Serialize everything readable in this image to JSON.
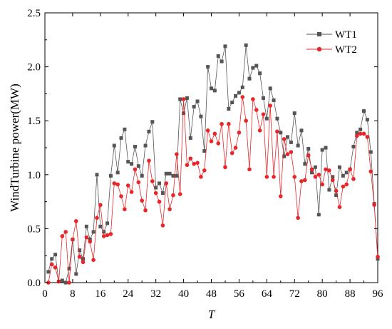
{
  "chart_data": {
    "type": "line",
    "xlabel": "T",
    "ylabel": "WindTurbine power(MW)",
    "xlim": [
      0,
      96
    ],
    "ylim": [
      0.0,
      2.5
    ],
    "x_ticks": [
      0,
      8,
      16,
      24,
      32,
      40,
      48,
      56,
      64,
      72,
      80,
      88,
      96
    ],
    "y_ticks": [
      0.0,
      0.5,
      1.0,
      1.5,
      2.0,
      2.5
    ],
    "y_tick_labels": [
      "0.0",
      "0.5",
      "1.0",
      "1.5",
      "2.0",
      "2.5"
    ],
    "grid": false,
    "legend_position": "top-right",
    "x": [
      1,
      2,
      3,
      4,
      5,
      6,
      7,
      8,
      9,
      10,
      11,
      12,
      13,
      14,
      15,
      16,
      17,
      18,
      19,
      20,
      21,
      22,
      23,
      24,
      25,
      26,
      27,
      28,
      29,
      30,
      31,
      32,
      33,
      34,
      35,
      36,
      37,
      38,
      39,
      40,
      41,
      42,
      43,
      44,
      45,
      46,
      47,
      48,
      49,
      50,
      51,
      52,
      53,
      54,
      55,
      56,
      57,
      58,
      59,
      60,
      61,
      62,
      63,
      64,
      65,
      66,
      67,
      68,
      69,
      70,
      71,
      72,
      73,
      74,
      75,
      76,
      77,
      78,
      79,
      80,
      81,
      82,
      83,
      84,
      85,
      86,
      87,
      88,
      89,
      90,
      91,
      92,
      93,
      94,
      95,
      96
    ],
    "series": [
      {
        "name": "WT1",
        "color": "#555555",
        "marker": "square",
        "values": [
          0.1,
          0.22,
          0.26,
          0.01,
          0.02,
          0.0,
          0.13,
          0.4,
          0.08,
          0.3,
          0.22,
          0.52,
          0.4,
          0.47,
          1.0,
          0.52,
          0.47,
          0.55,
          0.99,
          1.27,
          1.02,
          1.34,
          1.42,
          1.12,
          1.1,
          1.26,
          1.08,
          0.99,
          1.27,
          1.4,
          1.49,
          0.88,
          0.92,
          0.83,
          1.01,
          1.01,
          0.99,
          0.99,
          1.7,
          1.57,
          1.71,
          1.34,
          1.63,
          1.68,
          1.54,
          1.22,
          2.0,
          1.8,
          1.78,
          2.1,
          2.05,
          2.19,
          1.61,
          1.67,
          1.73,
          1.76,
          1.81,
          2.2,
          1.89,
          1.99,
          2.01,
          1.94,
          1.71,
          1.52,
          1.8,
          1.69,
          1.52,
          1.39,
          1.17,
          1.35,
          1.3,
          1.57,
          1.27,
          1.41,
          1.1,
          1.24,
          1.02,
          1.07,
          0.63,
          1.23,
          1.25,
          0.86,
          0.98,
          0.81,
          1.07,
          0.99,
          1.02,
          1.05,
          1.26,
          1.39,
          1.42,
          1.59,
          1.51,
          1.21,
          0.73,
          0.22
        ]
      },
      {
        "name": "WT2",
        "color": "#e8262a",
        "marker": "circle",
        "values": [
          0.0,
          0.17,
          0.14,
          0.01,
          0.43,
          0.47,
          0.0,
          0.4,
          0.57,
          0.24,
          0.19,
          0.42,
          0.38,
          0.21,
          0.6,
          0.72,
          0.43,
          0.44,
          0.45,
          0.92,
          0.91,
          0.8,
          0.68,
          0.9,
          0.84,
          1.05,
          0.93,
          0.76,
          0.67,
          1.13,
          0.94,
          0.83,
          0.75,
          0.53,
          0.92,
          0.68,
          0.81,
          1.19,
          0.82,
          1.7,
          1.09,
          1.15,
          1.1,
          1.11,
          0.98,
          1.04,
          1.41,
          1.31,
          1.38,
          1.29,
          1.47,
          1.07,
          1.47,
          1.2,
          1.25,
          1.39,
          1.72,
          1.5,
          1.05,
          1.7,
          1.6,
          1.41,
          1.56,
          0.98,
          1.64,
          0.98,
          1.4,
          0.8,
          1.33,
          1.19,
          1.21,
          0.98,
          0.6,
          0.94,
          0.95,
          1.18,
          1.05,
          0.98,
          1.0,
          0.91,
          1.05,
          1.04,
          0.95,
          0.85,
          0.7,
          0.89,
          0.91,
          1.05,
          0.96,
          1.36,
          1.38,
          1.38,
          1.35,
          1.03,
          0.72,
          0.24
        ]
      }
    ]
  }
}
